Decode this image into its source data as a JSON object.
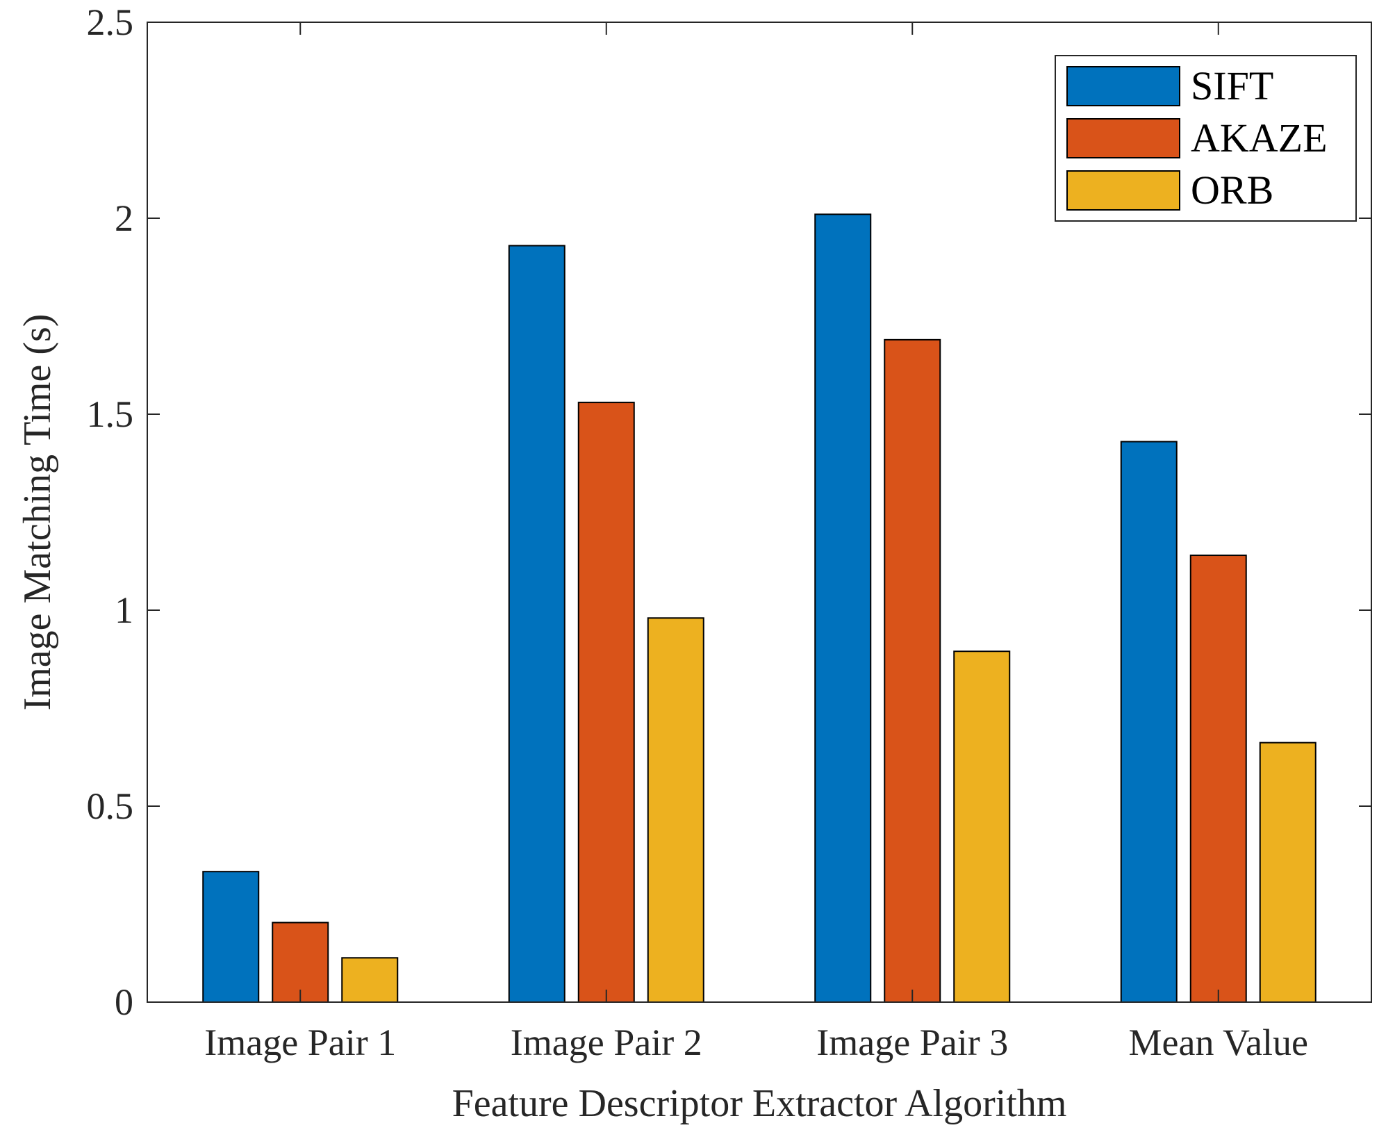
{
  "chart_data": {
    "type": "bar",
    "title": "",
    "xlabel": "Feature Descriptor Extractor Algorithm",
    "ylabel": "Image Matching Time (s)",
    "categories": [
      "Image Pair 1",
      "Image Pair 2",
      "Image Pair 3",
      "Mean Value"
    ],
    "series": [
      {
        "name": "SIFT",
        "color": "#0072BD",
        "values": [
          0.333,
          1.93,
          2.01,
          1.43
        ]
      },
      {
        "name": "AKAZE",
        "color": "#D95319",
        "values": [
          0.203,
          1.53,
          1.69,
          1.14
        ]
      },
      {
        "name": "ORB",
        "color": "#EDB120",
        "values": [
          0.113,
          0.98,
          0.895,
          0.662
        ]
      }
    ],
    "ylim": [
      0,
      2.5
    ],
    "yticks": [
      0,
      0.5,
      1,
      1.5,
      2,
      2.5
    ],
    "ytick_labels": [
      "0",
      "0.5",
      "1",
      "1.5",
      "2",
      "2.5"
    ],
    "grid": false,
    "legend_position": "top-right"
  }
}
